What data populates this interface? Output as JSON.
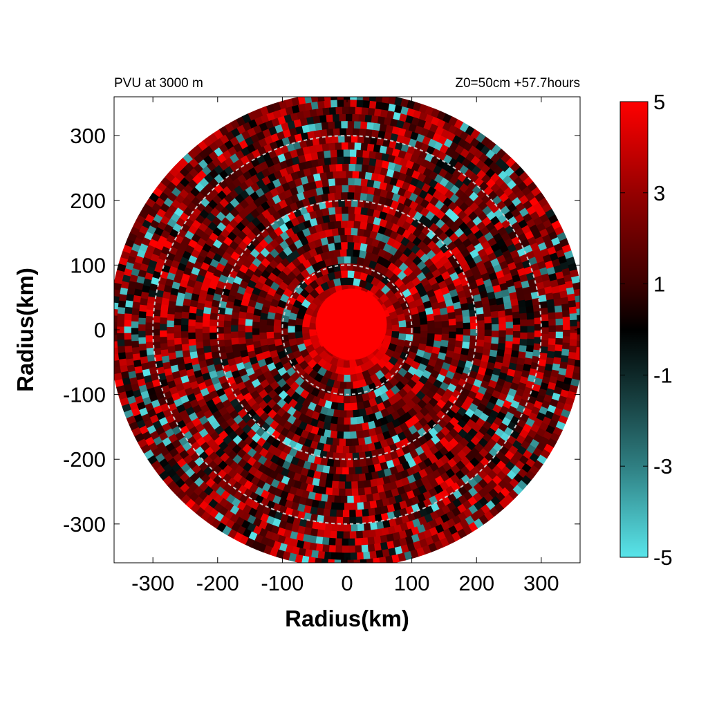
{
  "chart_data": {
    "type": "heatmap",
    "title_left": "PVU at  3000 m",
    "title_right": "Z0=50cm  +57.7hours",
    "xlabel": "Radius(km)",
    "ylabel": "Radius(km)",
    "xlim": [
      -360,
      360
    ],
    "ylim": [
      -360,
      360
    ],
    "x_ticks": [
      -300,
      -200,
      -100,
      0,
      100,
      200,
      300
    ],
    "y_ticks": [
      300,
      200,
      100,
      0,
      -100,
      -200,
      -300
    ],
    "domain_radius_km": 360,
    "reference_circle_radii_km": [
      100,
      200,
      300
    ],
    "core": {
      "value": 5,
      "radius_km": 55
    },
    "colorbar": {
      "min": -5,
      "max": 5,
      "ticks": [
        5,
        3,
        1,
        -1,
        -3,
        -5
      ],
      "colors": {
        "-5": "#59e5ea",
        "-3": "#2f7f82",
        "-1": "#0e2828",
        "0": "#000000",
        "1": "#3b0000",
        "3": "#960000",
        "5": "#ff0000"
      }
    }
  }
}
